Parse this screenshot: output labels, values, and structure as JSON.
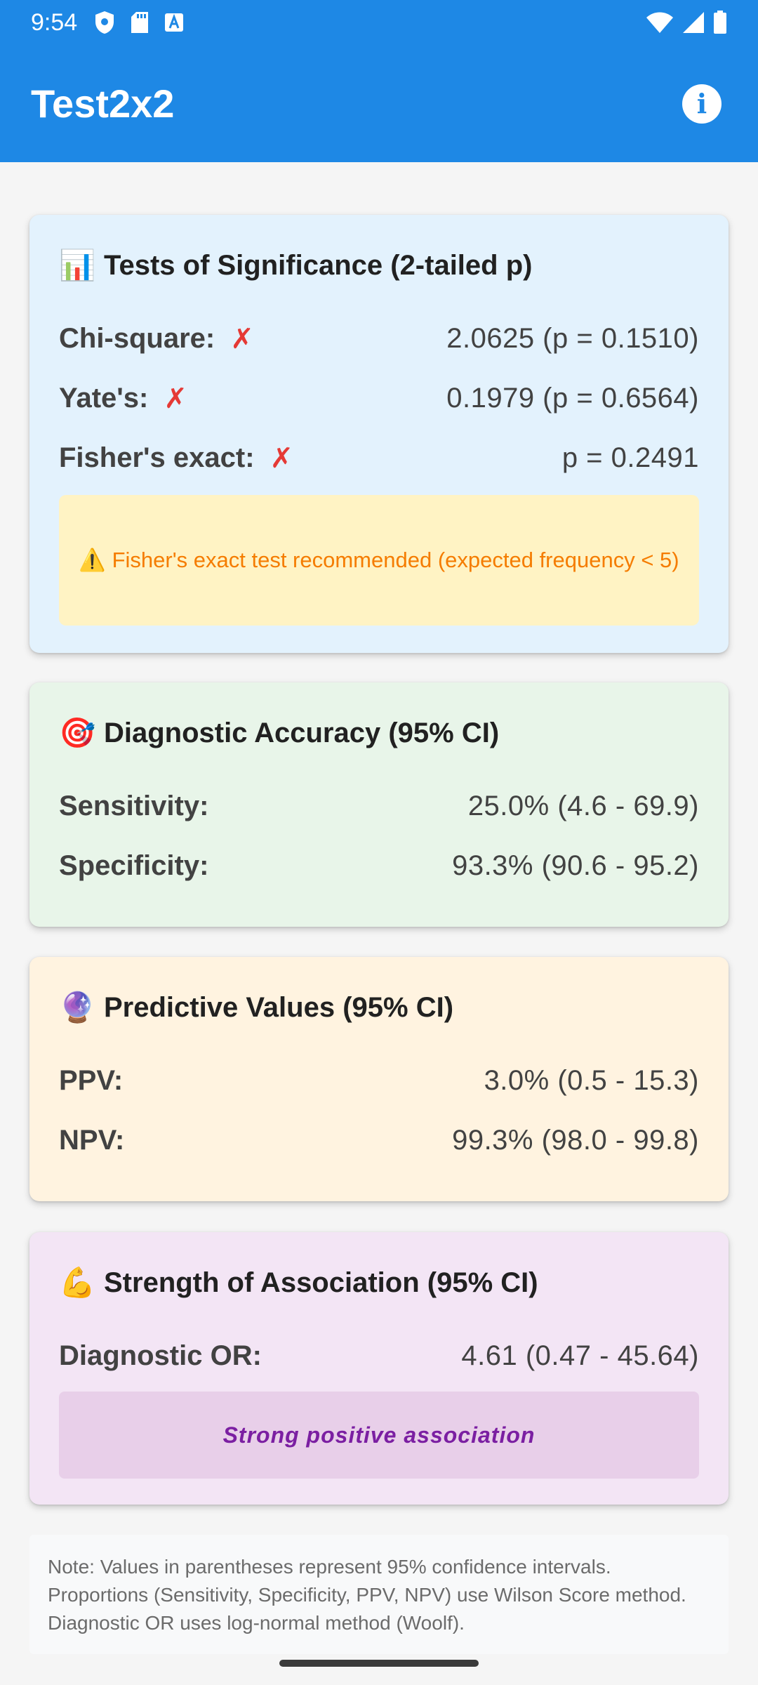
{
  "status_bar": {
    "time": "9:54",
    "left_icons": [
      "shield-icon",
      "sd-card-icon",
      "font-a-icon"
    ],
    "right_icons": [
      "wifi-icon",
      "cellular-signal-icon",
      "battery-icon"
    ]
  },
  "app_bar": {
    "title": "Test2x2",
    "info_icon": "i"
  },
  "significance": {
    "emoji": "📊",
    "title": "Tests of Significance (2-tailed p)",
    "rows": [
      {
        "label": "Chi-square:",
        "mark": "✗",
        "value": "2.0625 (p = 0.1510)"
      },
      {
        "label": "Yate's:",
        "mark": "✗",
        "value": "0.1979 (p = 0.6564)"
      },
      {
        "label": "Fisher's exact:",
        "mark": "✗",
        "value": "p = 0.2491"
      }
    ],
    "warning": "⚠️ Fisher's exact test recommended (expected frequency < 5)"
  },
  "diagnostic": {
    "emoji": "🎯",
    "title": "Diagnostic Accuracy (95% CI)",
    "rows": [
      {
        "label": "Sensitivity:",
        "value": "25.0% (4.6 - 69.9)"
      },
      {
        "label": "Specificity:",
        "value": "93.3% (90.6 - 95.2)"
      }
    ]
  },
  "predictive": {
    "emoji": "🔮",
    "title": "Predictive Values (95% CI)",
    "rows": [
      {
        "label": "PPV:",
        "value": "3.0% (0.5 - 15.3)"
      },
      {
        "label": "NPV:",
        "value": "99.3% (98.0 - 99.8)"
      }
    ]
  },
  "association": {
    "emoji": "💪",
    "title": "Strength of Association (95% CI)",
    "rows": [
      {
        "label": "Diagnostic OR:",
        "value": "4.61 (0.47 - 45.64)"
      }
    ],
    "interpretation": "Strong positive association"
  },
  "note": "Note: Values in parentheses represent 95% confidence intervals. Proportions (Sensitivity, Specificity, PPV, NPV) use Wilson Score method. Diagnostic OR uses log-normal method (Woolf).",
  "colors": {
    "primary": "#1e88e5",
    "significance_bg": "#e3f2fd",
    "diagnostic_bg": "#e8f5e9",
    "predictive_bg": "#fff3e0",
    "association_bg": "#f3e5f5",
    "fail_mark": "#e53935",
    "warning_text": "#f57c00",
    "association_text": "#7b1fa2"
  }
}
